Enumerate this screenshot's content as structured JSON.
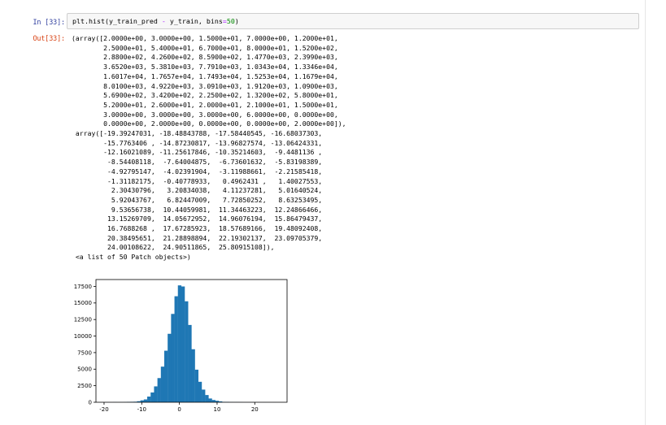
{
  "cell": {
    "in_prompt": "In [33]:",
    "out_prompt": "Out[33]:",
    "code": {
      "call": "plt.hist",
      "args": "(y_train_pred",
      "op": "-",
      "args2": "y_train, bins",
      "eq": "=",
      "num": "50",
      "close": ")"
    }
  },
  "output": {
    "lines": [
      "(array([2.0000e+00, 3.0000e+00, 1.5000e+01, 7.0000e+00, 1.2000e+01,",
      "        2.5000e+01, 5.4000e+01, 6.7000e+01, 8.0000e+01, 1.5200e+02,",
      "        2.8800e+02, 4.2600e+02, 8.5900e+02, 1.4770e+03, 2.3990e+03,",
      "        3.6520e+03, 5.3810e+03, 7.7910e+03, 1.0343e+04, 1.3346e+04,",
      "        1.6017e+04, 1.7657e+04, 1.7493e+04, 1.5253e+04, 1.1679e+04,",
      "        8.0100e+03, 4.9220e+03, 3.0910e+03, 1.9120e+03, 1.0900e+03,",
      "        5.6900e+02, 3.4200e+02, 2.2500e+02, 1.3200e+02, 5.8000e+01,",
      "        5.2000e+01, 2.6000e+01, 2.0000e+01, 2.1000e+01, 1.5000e+01,",
      "        3.0000e+00, 3.0000e+00, 3.0000e+00, 6.0000e+00, 0.0000e+00,",
      "        0.0000e+00, 2.0000e+00, 0.0000e+00, 0.0000e+00, 2.0000e+00]),",
      " array([-19.39247031, -18.48843788, -17.58440545, -16.68037303,",
      "        -15.7763406 , -14.87230817, -13.96827574, -13.06424331,",
      "        -12.16021089, -11.25617846, -10.35214603,  -9.4481136 ,",
      "         -8.54408118,  -7.64004875,  -6.73601632,  -5.83198389,",
      "         -4.92795147,  -4.02391904,  -3.11988661,  -2.21585418,",
      "         -1.31182175,  -0.40778933,   0.4962431 ,   1.40027553,",
      "          2.30430796,   3.20834038,   4.11237281,   5.01640524,",
      "          5.92043767,   6.82447009,   7.72850252,   8.63253495,",
      "          9.53656738,  10.44059981,  11.34463223,  12.24866466,",
      "         13.15269709,  14.05672952,  14.96076194,  15.86479437,",
      "         16.7688268 ,  17.67285923,  18.57689166,  19.48092408,",
      "         20.38495651,  21.28898894,  22.19302137,  23.09705379,",
      "         24.00108622,  24.90511865,  25.80915108]),",
      " <a list of 50 Patch objects>)"
    ]
  },
  "chart_data": {
    "type": "bar",
    "title": "",
    "xlabel": "",
    "ylabel": "",
    "bar_color": "#1f77b4",
    "xlim": [
      -22.15,
      28.57
    ],
    "ylim": [
      0,
      18540
    ],
    "xticks": [
      -20,
      -10,
      0,
      10,
      20
    ],
    "xtick_labels": [
      "-20",
      "-10",
      "0",
      "10",
      "20"
    ],
    "yticks": [
      0,
      2500,
      5000,
      7500,
      10000,
      12500,
      15000,
      17500
    ],
    "ytick_labels": [
      "0",
      "2500",
      "5000",
      "7500",
      "10000",
      "12500",
      "15000",
      "17500"
    ],
    "bin_edges": [
      -19.39247031,
      -18.48843788,
      -17.58440545,
      -16.68037303,
      -15.7763406,
      -14.87230817,
      -13.96827574,
      -13.06424331,
      -12.16021089,
      -11.25617846,
      -10.35214603,
      -9.4481136,
      -8.54408118,
      -7.64004875,
      -6.73601632,
      -5.83198389,
      -4.92795147,
      -4.02391904,
      -3.11988661,
      -2.21585418,
      -1.31182175,
      -0.40778933,
      0.4962431,
      1.40027553,
      2.30430796,
      3.20834038,
      4.11237281,
      5.01640524,
      5.92043767,
      6.82447009,
      7.72850252,
      8.63253495,
      9.53656738,
      10.44059981,
      11.34463223,
      12.24866466,
      13.15269709,
      14.05672952,
      14.96076194,
      15.86479437,
      16.7688268,
      17.67285923,
      18.57689166,
      19.48092408,
      20.38495651,
      21.28898894,
      22.19302137,
      23.09705379,
      24.00108622,
      24.90511865,
      25.80915108
    ],
    "values": [
      2,
      3,
      15,
      7,
      12,
      25,
      54,
      67,
      80,
      152,
      288,
      426,
      859,
      1477,
      2399,
      3652,
      5381,
      7791,
      10343,
      13346,
      16017,
      17657,
      17493,
      15253,
      11679,
      8010,
      4922,
      3091,
      1912,
      1090,
      569,
      342,
      225,
      132,
      58,
      52,
      26,
      20,
      21,
      15,
      3,
      3,
      3,
      6,
      0,
      0,
      2,
      0,
      0,
      2
    ]
  }
}
